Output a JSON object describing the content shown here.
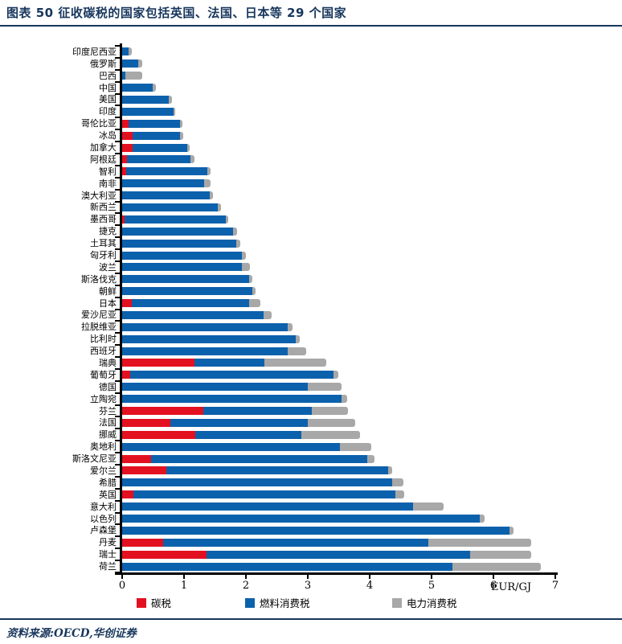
{
  "header": {
    "title": "图表 50  征收碳税的国家包括英国、法国、日本等 29 个国家"
  },
  "chart_data": {
    "type": "bar",
    "orientation": "horizontal",
    "stacked": true,
    "title": "征收碳税的国家包括英国、法国、日本等29个国家",
    "xlabel_unit": "EUR/GJ",
    "xlim": [
      0,
      7
    ],
    "x_ticks": [
      "0",
      "1",
      "2",
      "3",
      "4",
      "5",
      "6",
      "7"
    ],
    "grid": false,
    "legend_position": "bottom",
    "categories": [
      "印度尼西亚",
      "俄罗斯",
      "巴西",
      "中国",
      "美国",
      "印度",
      "哥伦比亚",
      "冰岛",
      "加拿大",
      "阿根廷",
      "智利",
      "南非",
      "澳大利亚",
      "新西兰",
      "墨西哥",
      "捷克",
      "土耳其",
      "匈牙利",
      "波兰",
      "斯洛伐克",
      "朝鲜",
      "日本",
      "爱沙尼亚",
      "拉脱维亚",
      "比利时",
      "西班牙",
      "瑞典",
      "葡萄牙",
      "德国",
      "立陶宛",
      "芬兰",
      "法国",
      "挪威",
      "奥地利",
      "斯洛文尼亚",
      "爱尔兰",
      "希腊",
      "英国",
      "意大利",
      "以色列",
      "卢森堡",
      "丹麦",
      "瑞士",
      "荷兰"
    ],
    "series": [
      {
        "name": "碳税",
        "color": "#e31120",
        "values": [
          0,
          0,
          0,
          0,
          0,
          0,
          0.1,
          0.17,
          0.17,
          0.08,
          0.07,
          0,
          0,
          0,
          0.04,
          0,
          0,
          0,
          0,
          0,
          0,
          0.15,
          0,
          0,
          0,
          0,
          1.17,
          0.13,
          0,
          0,
          1.31,
          0.78,
          1.18,
          0,
          0.47,
          0.71,
          0,
          0.18,
          0,
          0,
          0,
          0.66,
          1.36,
          0
        ]
      },
      {
        "name": "燃料消费税",
        "color": "#0c61ac",
        "values": [
          0.1,
          0.26,
          0.05,
          0.49,
          0.75,
          0.83,
          0.83,
          0.77,
          0.88,
          1.03,
          1.31,
          1.33,
          1.41,
          1.55,
          1.63,
          1.79,
          1.85,
          1.94,
          1.93,
          2.05,
          2.1,
          1.9,
          2.29,
          2.68,
          2.8,
          2.68,
          1.13,
          3.29,
          3.0,
          3.54,
          1.75,
          2.22,
          1.72,
          3.52,
          3.49,
          3.59,
          4.36,
          4.23,
          4.7,
          5.78,
          6.26,
          4.29,
          4.26,
          5.34
        ]
      },
      {
        "name": "电力消费税",
        "color": "#a8a8a8",
        "values": [
          0.05,
          0.06,
          0.28,
          0.06,
          0.06,
          0.03,
          0.04,
          0.05,
          0.04,
          0.06,
          0.05,
          0.1,
          0.06,
          0.05,
          0.05,
          0.07,
          0.06,
          0.06,
          0.13,
          0.06,
          0.06,
          0.19,
          0.13,
          0.07,
          0.07,
          0.3,
          1.0,
          0.07,
          0.54,
          0.1,
          0.59,
          0.77,
          0.94,
          0.51,
          0.12,
          0.07,
          0.19,
          0.15,
          0.5,
          0.08,
          0.06,
          1.66,
          0.99,
          1.43
        ]
      }
    ]
  },
  "footer": {
    "source": "资料来源:OECD,华创证券"
  },
  "colors": {
    "accent_navy": "#17365d",
    "carbon_tax_red": "#e31120",
    "fuel_tax_blue": "#0c61ac",
    "electricity_tax_gray": "#a8a8a8"
  }
}
